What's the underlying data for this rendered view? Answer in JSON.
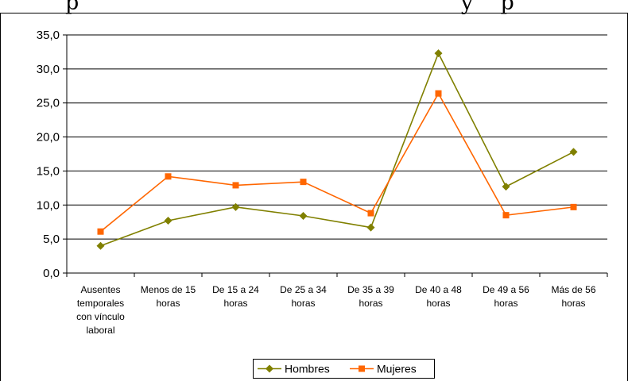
{
  "chart_data": {
    "type": "line",
    "title": "p                                                        y    p",
    "categories": [
      [
        "Ausentes",
        "temporales",
        "con vínculo",
        "laboral"
      ],
      [
        "Menos de 15",
        "horas"
      ],
      [
        "De 15 a 24",
        "horas"
      ],
      [
        "De 25 a 34",
        "horas"
      ],
      [
        "De 35 a 39",
        "horas"
      ],
      [
        "De 40 a 48",
        "horas"
      ],
      [
        "De 49 a 56",
        "horas"
      ],
      [
        "Más de 56",
        "horas"
      ]
    ],
    "yticks": [
      "0,0",
      "5,0",
      "10,0",
      "15,0",
      "20,0",
      "25,0",
      "30,0",
      "35,0"
    ],
    "ylim": [
      0,
      35
    ],
    "grid": true,
    "legend_position": "bottom",
    "series": [
      {
        "name": "Hombres",
        "color": "#808000",
        "marker": "diamond",
        "values": [
          4.0,
          7.7,
          9.7,
          8.4,
          6.7,
          32.3,
          12.7,
          17.8
        ]
      },
      {
        "name": "Mujeres",
        "color": "#ff6600",
        "marker": "square",
        "values": [
          6.1,
          14.2,
          12.9,
          13.4,
          8.8,
          26.4,
          8.5,
          9.7
        ]
      }
    ]
  }
}
